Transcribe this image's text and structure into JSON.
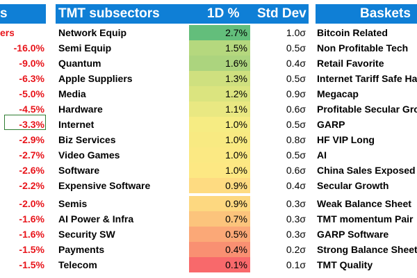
{
  "left_panel": {
    "header": "s",
    "subheader": "ers",
    "values": [
      "-16.0%",
      "-9.0%",
      "-6.3%",
      "-5.0%",
      "-4.5%",
      "-3.3%",
      "-2.9%",
      "-2.7%",
      "-2.6%",
      "-2.2%",
      "-2.0%",
      "-1.6%",
      "-1.6%",
      "-1.5%",
      "-1.5%"
    ]
  },
  "tmt_table": {
    "headers": {
      "subsectors": "TMT subsectors",
      "change": "1D %",
      "stddev": "Std Dev"
    },
    "rows": [
      {
        "name": "Network Equip",
        "pct": "2.7%",
        "std": "1.0σ",
        "color": "#63be7b"
      },
      {
        "name": "Semi Equip",
        "pct": "1.5%",
        "std": "0.5σ",
        "color": "#b5d87e"
      },
      {
        "name": "Quantum",
        "pct": "1.6%",
        "std": "0.4σ",
        "color": "#acd47e"
      },
      {
        "name": "Apple Suppliers",
        "pct": "1.3%",
        "std": "0.5σ",
        "color": "#cfe07f"
      },
      {
        "name": "Media",
        "pct": "1.2%",
        "std": "0.9σ",
        "color": "#dbe47f"
      },
      {
        "name": "Hardware",
        "pct": "1.1%",
        "std": "0.6σ",
        "color": "#e9e882"
      },
      {
        "name": "Internet",
        "pct": "1.0%",
        "std": "0.5σ",
        "color": "#f6ec83"
      },
      {
        "name": "Biz Services",
        "pct": "1.0%",
        "std": "0.8σ",
        "color": "#f8ea82"
      },
      {
        "name": "Video Games",
        "pct": "1.0%",
        "std": "0.5σ",
        "color": "#fbe983"
      },
      {
        "name": "Software",
        "pct": "1.0%",
        "std": "0.6σ",
        "color": "#fde883"
      },
      {
        "name": "Expensive Software",
        "pct": "0.9%",
        "std": "0.4σ",
        "color": "#fedb81"
      },
      {
        "name": "Semis",
        "pct": "0.9%",
        "std": "0.3σ",
        "color": "#fdd880"
      },
      {
        "name": "AI Power & Infra",
        "pct": "0.7%",
        "std": "0.3σ",
        "color": "#fcc47c"
      },
      {
        "name": "Security SW",
        "pct": "0.5%",
        "std": "0.3σ",
        "color": "#fba877"
      },
      {
        "name": "Payments",
        "pct": "0.4%",
        "std": "0.2σ",
        "color": "#f99072"
      },
      {
        "name": "Telecom",
        "pct": "0.1%",
        "std": "0.1σ",
        "color": "#f8696b"
      }
    ]
  },
  "baskets": {
    "header": "Baskets",
    "items": [
      "Bitcoin Related",
      "Non Profitable Tech",
      "Retail Favorite",
      "Internet Tariff Safe Ha",
      "Megacap",
      "Profitable Secular Gro",
      "GARP",
      "HF VIP Long",
      "AI",
      "China Sales Exposed",
      "Secular Growth",
      "Weak Balance Sheet",
      "TMT momentum Pair",
      "GARP Software",
      "Strong Balance Sheet",
      "TMT Quality"
    ]
  }
}
